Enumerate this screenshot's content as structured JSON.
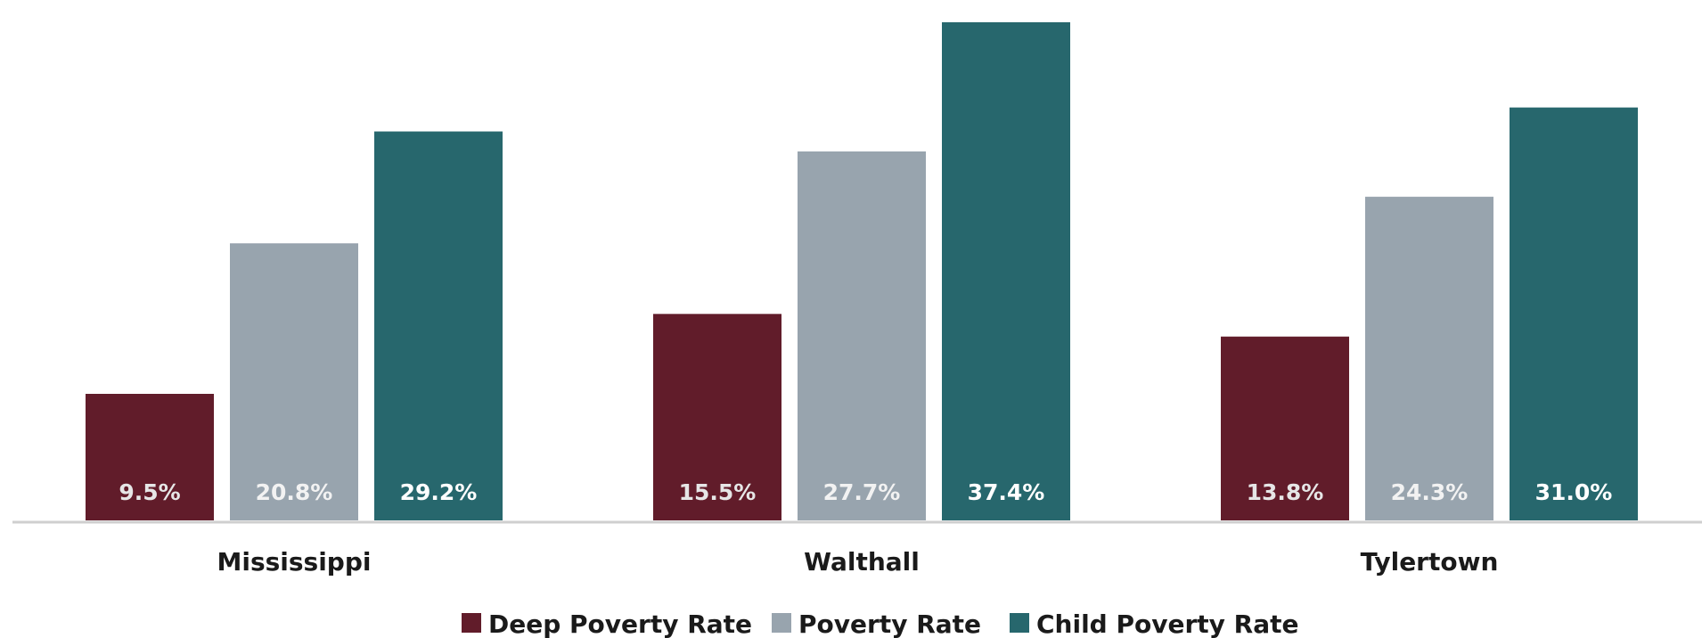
{
  "chart_data": {
    "type": "bar",
    "categories": [
      "Mississippi",
      "Walthall",
      "Tylertown"
    ],
    "series": [
      {
        "name": "Deep Poverty Rate",
        "values": [
          9.5,
          15.5,
          13.8
        ],
        "labels": [
          "9.5%",
          "15.5%",
          "13.8%"
        ],
        "color": "#611c2a",
        "label_color": "#e6e6e6"
      },
      {
        "name": "Poverty Rate",
        "values": [
          20.8,
          27.7,
          24.3
        ],
        "labels": [
          "20.8%",
          "27.7%",
          "24.3%"
        ],
        "color": "#98a4ae",
        "label_color": "#f2f2f2"
      },
      {
        "name": "Child Poverty Rate",
        "values": [
          29.2,
          37.4,
          31.0
        ],
        "labels": [
          "29.2%",
          "37.4%",
          "31.0%"
        ],
        "color": "#27676d",
        "label_color": "#ffffff"
      }
    ],
    "title": "",
    "xlabel": "",
    "ylabel": "",
    "ylim": [
      0,
      38
    ],
    "grid": false,
    "legend_position": "bottom"
  }
}
